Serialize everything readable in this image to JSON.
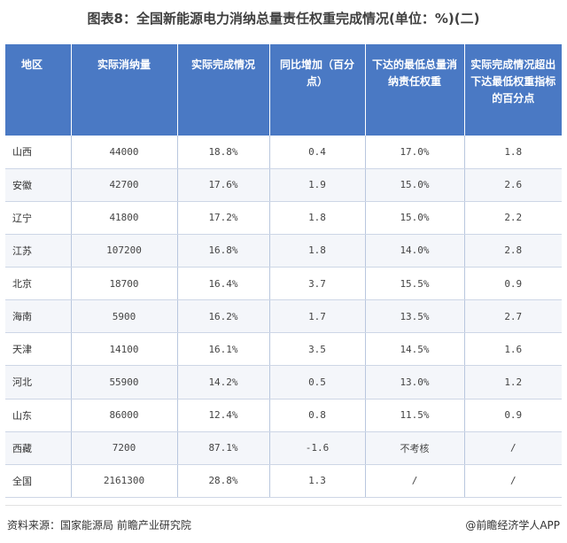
{
  "title": "图表8：全国新能源电力消纳总量责任权重完成情况(单位：%)(二)",
  "table": {
    "headers": [
      "地区",
      "实际消纳量",
      "实际完成情况",
      "同比增加（百分点）",
      "下达的最低总量消纳责任权重",
      "实际完成情况超出下达最低权重指标的百分点"
    ],
    "rows": [
      [
        "山西",
        "44000",
        "18.8%",
        "0.4",
        "17.0%",
        "1.8"
      ],
      [
        "安徽",
        "42700",
        "17.6%",
        "1.9",
        "15.0%",
        "2.6"
      ],
      [
        "辽宁",
        "41800",
        "17.2%",
        "1.8",
        "15.0%",
        "2.2"
      ],
      [
        "江苏",
        "107200",
        "16.8%",
        "1.8",
        "14.0%",
        "2.8"
      ],
      [
        "北京",
        "18700",
        "16.4%",
        "3.7",
        "15.5%",
        "0.9"
      ],
      [
        "海南",
        "5900",
        "16.2%",
        "1.7",
        "13.5%",
        "2.7"
      ],
      [
        "天津",
        "14100",
        "16.1%",
        "3.5",
        "14.5%",
        "1.6"
      ],
      [
        "河北",
        "55900",
        "14.2%",
        "0.5",
        "13.0%",
        "1.2"
      ],
      [
        "山东",
        "86000",
        "12.4%",
        "0.8",
        "11.5%",
        "0.9"
      ],
      [
        "西藏",
        "7200",
        "87.1%",
        "-1.6",
        "不考核",
        "/"
      ],
      [
        "全国",
        "2161300",
        "28.8%",
        "1.3",
        "/",
        "/"
      ]
    ]
  },
  "footer": {
    "source": "资料来源：国家能源局 前瞻产业研究院",
    "brand": "@前瞻经济学人APP"
  }
}
